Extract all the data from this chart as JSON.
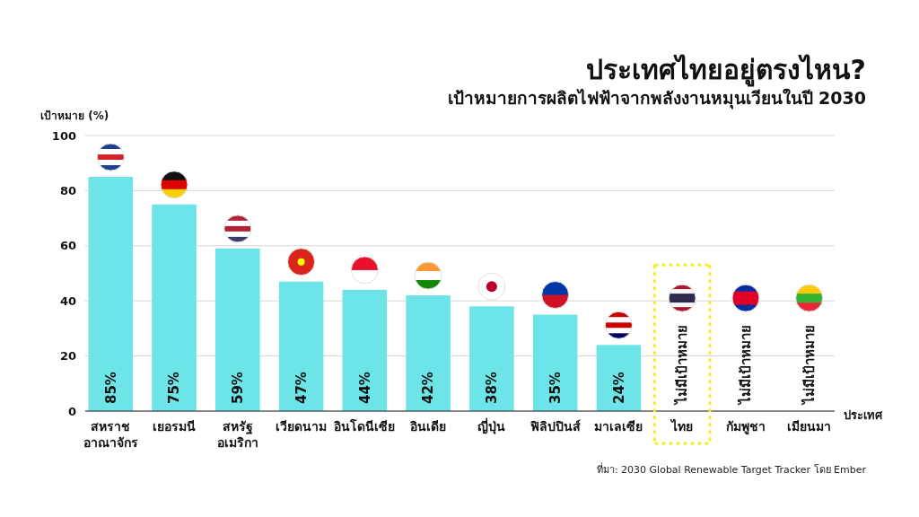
{
  "chart_data": {
    "type": "bar",
    "title": "ประเทศไทยอยู่ตรงไหน?",
    "subtitle": "เป้าหมายการผลิตไฟฟ้าจากพลังงานหมุนเวียนในปี 2030",
    "ylabel": "เป้าหมาย (%)",
    "xlabel": "ประเทศ",
    "categories": [
      "สหราช\nอาณาจักร",
      "เยอรมนี",
      "สหรัฐ\nอเมริกา",
      "เวียดนาม",
      "อินโดนีเซีย",
      "อินเดีย",
      "ญี่ปุ่น",
      "ฟิลิปปินส์",
      "มาเลเซีย",
      "ไทย",
      "กัมพูชา",
      "เมียนมา"
    ],
    "values": [
      85,
      75,
      59,
      47,
      44,
      42,
      38,
      35,
      24,
      null,
      null,
      null
    ],
    "value_labels": [
      "85%",
      "75%",
      "59%",
      "47%",
      "44%",
      "42%",
      "38%",
      "35%",
      "24%",
      "ไม่มีเป้าหมาย",
      "ไม่มีเป้าหมาย",
      "ไม่มีเป้าหมาย"
    ],
    "color": "#6de4e8",
    "ylim": [
      0,
      100
    ],
    "yticks": [
      0,
      20,
      40,
      60,
      80,
      100
    ],
    "grid": "y",
    "annotations": [
      "ที่มา: 2030 Global Renewable Target Tracker โดย  Ember"
    ]
  }
}
